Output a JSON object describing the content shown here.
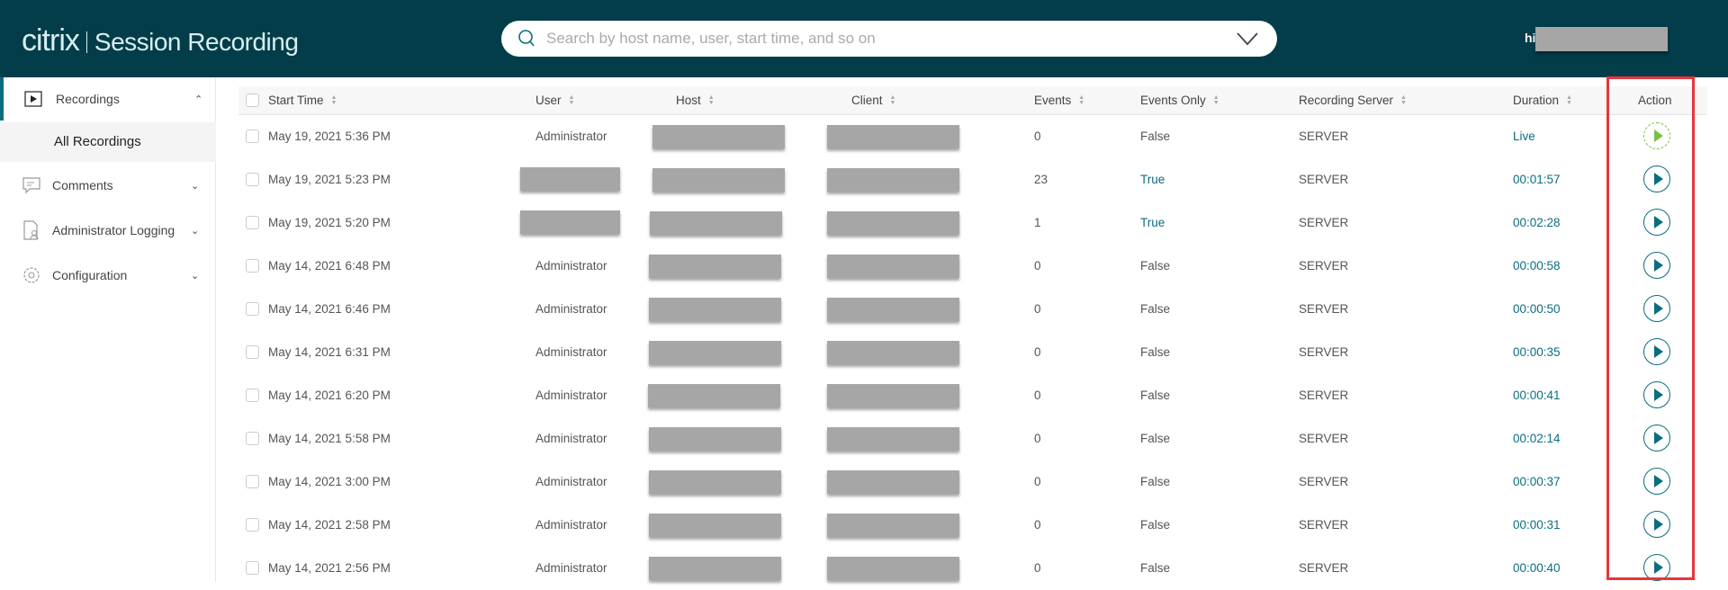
{
  "header": {
    "logo": "citrix",
    "app_title": "Session Recording",
    "search_placeholder": "Search by host name, user, start time, and so on",
    "greeting": "hi"
  },
  "sidebar": {
    "items": [
      {
        "label": "Recordings",
        "icon": "play-box-icon",
        "expanded": true,
        "children": [
          {
            "label": "All Recordings"
          }
        ]
      },
      {
        "label": "Comments",
        "icon": "comment-icon"
      },
      {
        "label": "Administrator Logging",
        "icon": "document-user-icon"
      },
      {
        "label": "Configuration",
        "icon": "gear-icon"
      }
    ]
  },
  "table": {
    "columns": [
      "Start Time",
      "User",
      "Host",
      "Client",
      "Events",
      "Events Only",
      "Recording Server",
      "Duration",
      "Action"
    ],
    "rows": [
      {
        "start": "May 19, 2021 5:36 PM",
        "user": "Administrator",
        "events": "0",
        "events_only": "False",
        "server": "SERVER",
        "duration": "Live",
        "live": true
      },
      {
        "start": "May 19, 2021 5:23 PM",
        "user": "",
        "events": "23",
        "events_only": "True",
        "server": "SERVER",
        "duration": "00:01:57"
      },
      {
        "start": "May 19, 2021 5:20 PM",
        "user": "",
        "events": "1",
        "events_only": "True",
        "server": "SERVER",
        "duration": "00:02:28"
      },
      {
        "start": "May 14, 2021 6:48 PM",
        "user": "Administrator",
        "events": "0",
        "events_only": "False",
        "server": "SERVER",
        "duration": "00:00:58"
      },
      {
        "start": "May 14, 2021 6:46 PM",
        "user": "Administrator",
        "events": "0",
        "events_only": "False",
        "server": "SERVER",
        "duration": "00:00:50"
      },
      {
        "start": "May 14, 2021 6:31 PM",
        "user": "Administrator",
        "events": "0",
        "events_only": "False",
        "server": "SERVER",
        "duration": "00:00:35"
      },
      {
        "start": "May 14, 2021 6:20 PM",
        "user": "Administrator",
        "events": "0",
        "events_only": "False",
        "server": "SERVER",
        "duration": "00:00:41"
      },
      {
        "start": "May 14, 2021 5:58 PM",
        "user": "Administrator",
        "events": "0",
        "events_only": "False",
        "server": "SERVER",
        "duration": "00:02:14"
      },
      {
        "start": "May 14, 2021 3:00 PM",
        "user": "Administrator",
        "events": "0",
        "events_only": "False",
        "server": "SERVER",
        "duration": "00:00:37"
      },
      {
        "start": "May 14, 2021 2:58 PM",
        "user": "Administrator",
        "events": "0",
        "events_only": "False",
        "server": "SERVER",
        "duration": "00:00:31"
      },
      {
        "start": "May 14, 2021 2:56 PM",
        "user": "Administrator",
        "events": "0",
        "events_only": "False",
        "server": "SERVER",
        "duration": "00:00:40"
      }
    ]
  },
  "colors": {
    "header_bg": "#033d4a",
    "accent": "#0a6e7f",
    "live": "#7ac143",
    "highlight": "#e8353b"
  }
}
